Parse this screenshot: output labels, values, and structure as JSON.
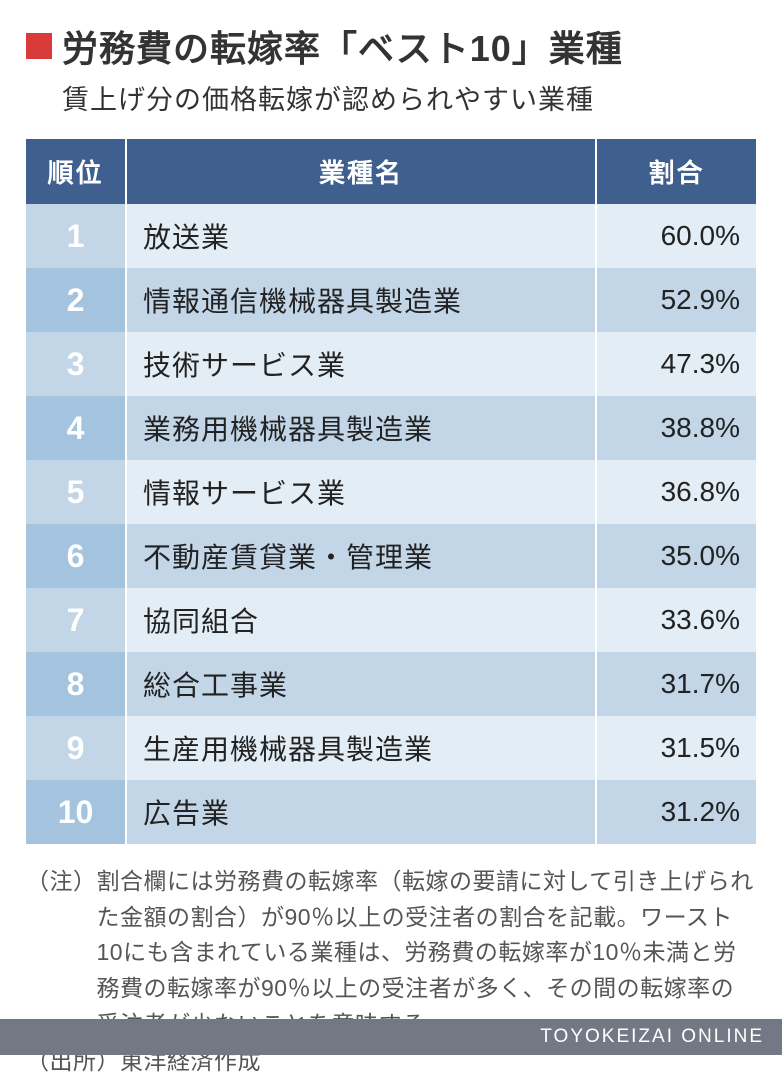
{
  "header": {
    "marker_color": "#d93a3a",
    "title": "労務費の転嫁率「ベスト10」業種",
    "subtitle": "賃上げ分の価格転嫁が認められやすい業種"
  },
  "table": {
    "columns": {
      "rank": "順位",
      "name": "業種名",
      "pct": "割合"
    },
    "header_bg": "#3f608f",
    "header_fg": "#ffffff",
    "row_odd_rank_bg": "#c2d6e8",
    "row_even_rank_bg": "#a4c3de",
    "row_odd_data_bg": "#e2edf5",
    "row_even_data_bg": "#c2d6e8",
    "rows": [
      {
        "rank": "1",
        "name": "放送業",
        "pct": "60.0%"
      },
      {
        "rank": "2",
        "name": "情報通信機械器具製造業",
        "pct": "52.9%"
      },
      {
        "rank": "3",
        "name": "技術サービス業",
        "pct": "47.3%"
      },
      {
        "rank": "4",
        "name": "業務用機械器具製造業",
        "pct": "38.8%"
      },
      {
        "rank": "5",
        "name": "情報サービス業",
        "pct": "36.8%"
      },
      {
        "rank": "6",
        "name": "不動産賃貸業・管理業",
        "pct": "35.0%"
      },
      {
        "rank": "7",
        "name": "協同組合",
        "pct": "33.6%"
      },
      {
        "rank": "8",
        "name": "総合工事業",
        "pct": "31.7%"
      },
      {
        "rank": "9",
        "name": "生産用機械器具製造業",
        "pct": "31.5%"
      },
      {
        "rank": "10",
        "name": "広告業",
        "pct": "31.2%"
      }
    ]
  },
  "notes": {
    "note_label": "（注）",
    "note_text": "割合欄には労務費の転嫁率（転嫁の要請に対して引き上げられた金額の割合）が90％以上の受注者の割合を記載。ワースト10にも含まれている業種は、労務費の転嫁率が10％未満と労務費の転嫁率が90％以上の受注者が多く、その間の転嫁率の受注者が少ないことを意味する",
    "source_label": "（出所）",
    "source_text": "東洋経済作成"
  },
  "footer": {
    "brand": "TOYOKEIZAI ONLINE",
    "bg": "#737984",
    "fg": "#ffffff"
  }
}
